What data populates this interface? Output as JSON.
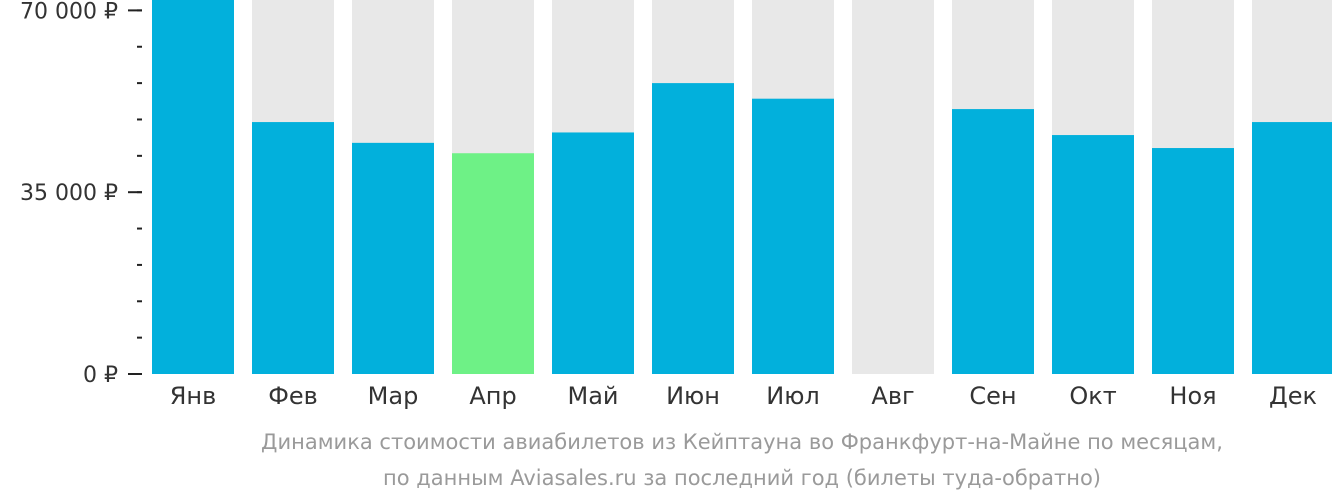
{
  "chart_data": {
    "type": "bar",
    "categories": [
      "Янв",
      "Фев",
      "Мар",
      "Апр",
      "Май",
      "Июн",
      "Июл",
      "Авг",
      "Сен",
      "Окт",
      "Ноя",
      "Дек"
    ],
    "values": [
      72000,
      48500,
      44500,
      42500,
      46500,
      56000,
      53000,
      null,
      51000,
      46000,
      43500,
      48500
    ],
    "ylim": [
      0,
      72000
    ],
    "yticks": [
      {
        "value": 0,
        "label": "0 ₽"
      },
      {
        "value": 35000,
        "label": "35 000 ₽"
      },
      {
        "value": 70000,
        "label": "70 000 ₽"
      }
    ],
    "minor_tick_step": 7000,
    "highlight_index": 3,
    "colors": {
      "bar": "#02b0dc",
      "highlight": "#6ef186",
      "track": "#e8e8e8",
      "axis": "#222222"
    }
  },
  "caption": {
    "line1": "Динамика стоимости авиабилетов из Кейптауна во Франкфурт-на-Майне по месяцам,",
    "line2": "по данным Aviasales.ru за последний год (билеты туда-обратно)"
  }
}
